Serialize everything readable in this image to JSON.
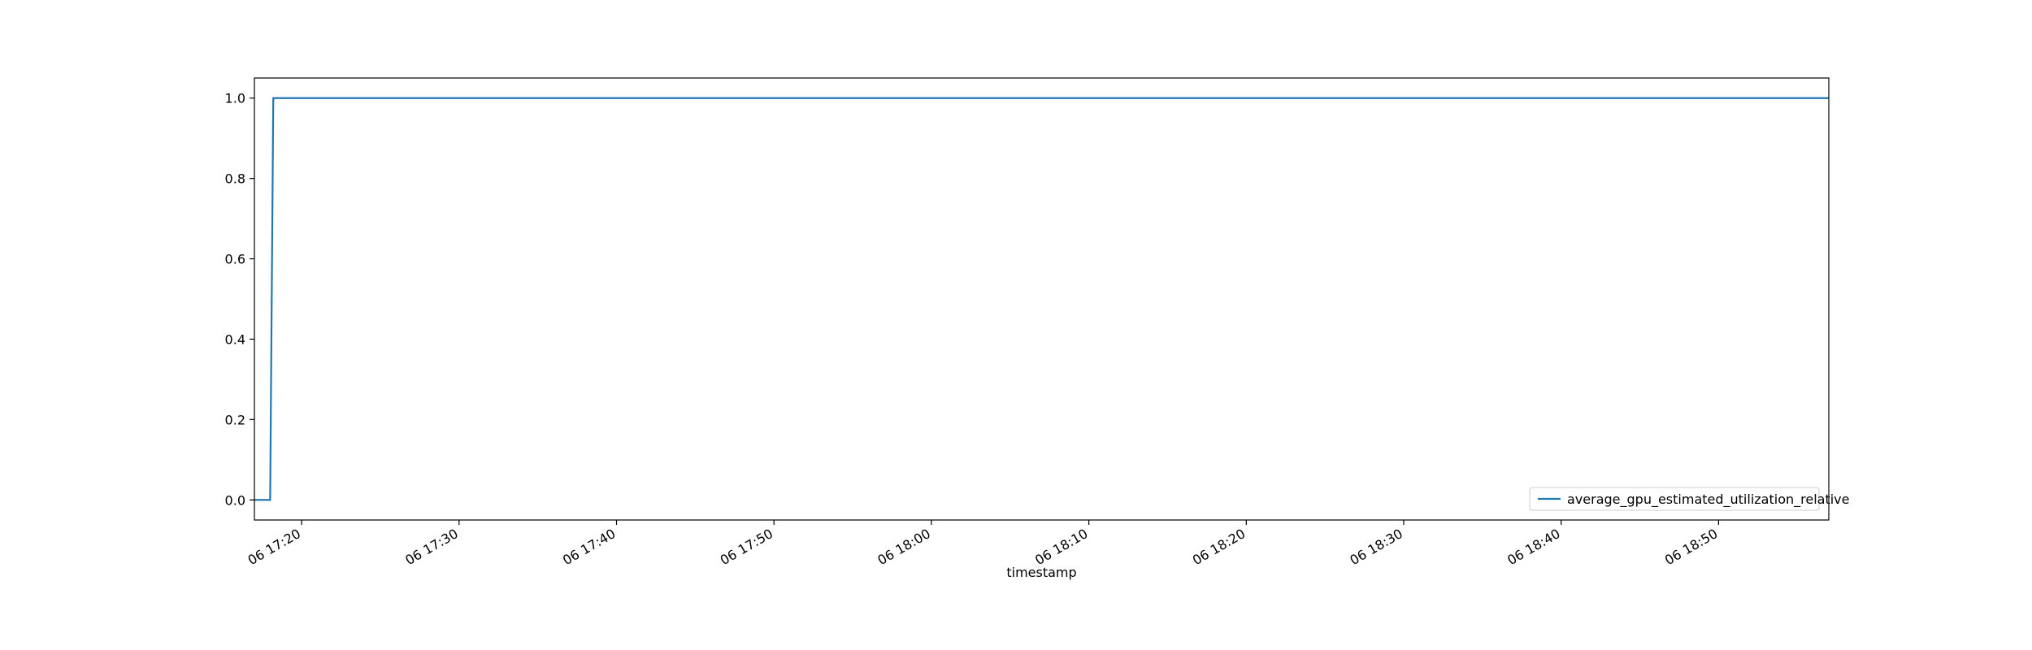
{
  "chart_data": {
    "type": "line",
    "title": "",
    "xlabel": "timestamp",
    "ylabel": "",
    "x_tick_labels": [
      "06 17:20",
      "06 17:30",
      "06 17:40",
      "06 17:50",
      "06 18:00",
      "06 18:10",
      "06 18:20",
      "06 18:30",
      "06 18:40",
      "06 18:50"
    ],
    "x_ticks": [
      "17:20",
      "17:30",
      "17:40",
      "17:50",
      "18:00",
      "18:10",
      "18:20",
      "18:30",
      "18:40",
      "18:50"
    ],
    "xlim": [
      "17:17",
      "18:57"
    ],
    "y_tick_labels": [
      "0.0",
      "0.2",
      "0.4",
      "0.6",
      "0.8",
      "1.0"
    ],
    "y_ticks": [
      0.0,
      0.2,
      0.4,
      0.6,
      0.8,
      1.0
    ],
    "ylim": [
      -0.05,
      1.05
    ],
    "grid": false,
    "legend_position": "lower-right",
    "series": [
      {
        "name": "average_gpu_estimated_utilization_relative",
        "color": "#1f77b4",
        "x": [
          "17:17",
          "17:18",
          "17:18.2",
          "18:57"
        ],
        "y": [
          0.0,
          0.0,
          1.0,
          1.0
        ]
      }
    ]
  }
}
